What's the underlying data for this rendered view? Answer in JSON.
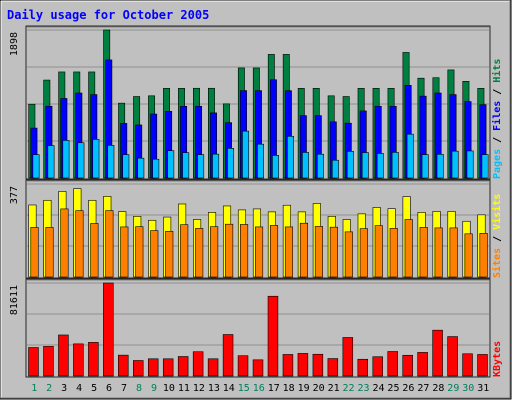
{
  "title": "Daily usage for October 2005",
  "colors": {
    "background": "#c0c0c0",
    "title": "#0000ff",
    "hits": "#008040",
    "files": "#0000ff",
    "pages": "#00c0ff",
    "visits": "#ffff00",
    "sites": "#ff8000",
    "kbytes": "#ff0000",
    "weekday": "#000000",
    "weekend": "#00805c"
  },
  "chart_data": [
    {
      "type": "bar",
      "name": "hits-files-pages",
      "ymax_label": "1898",
      "ymax": 1898,
      "side_label": [
        "Pages",
        "Files",
        "Hits"
      ],
      "categories": [
        "1",
        "2",
        "3",
        "4",
        "5",
        "6",
        "7",
        "8",
        "9",
        "10",
        "11",
        "12",
        "13",
        "14",
        "15",
        "16",
        "17",
        "18",
        "19",
        "20",
        "21",
        "22",
        "23",
        "24",
        "25",
        "26",
        "27",
        "28",
        "29",
        "30",
        "31"
      ],
      "weekend_days": [
        1,
        2,
        8,
        9,
        15,
        16,
        22,
        23,
        29,
        30
      ],
      "series": [
        {
          "name": "Hits",
          "values": [
            946,
            1256,
            1360,
            1360,
            1360,
            1898,
            960,
            1045,
            1054,
            1150,
            1150,
            1151,
            1151,
            951,
            1411,
            1411,
            1585,
            1585,
            1150,
            1150,
            1054,
            1045,
            1150,
            1150,
            1150,
            1610,
            1280,
            1286,
            1386,
            1240,
            1150
          ]
        },
        {
          "name": "Files",
          "values": [
            640,
            920,
            1020,
            1090,
            1070,
            1514,
            700,
            680,
            820,
            855,
            920,
            920,
            835,
            710,
            1121,
            1121,
            1260,
            1120,
            800,
            800,
            720,
            703,
            860,
            920,
            920,
            1188,
            1050,
            1090,
            1070,
            980,
            940
          ]
        },
        {
          "name": "Pages",
          "values": [
            300,
            416,
            482,
            452,
            495,
            419,
            300,
            254,
            241,
            350,
            325,
            300,
            306,
            380,
            601,
            434,
            290,
            535,
            328,
            305,
            228,
            342,
            326,
            315,
            329,
            562,
            300,
            304,
            344,
            347,
            300
          ]
        }
      ]
    },
    {
      "type": "bar",
      "name": "visits-sites",
      "ymax_label": "377",
      "ymax": 377,
      "side_label": [
        "Sites",
        "Visits"
      ],
      "categories": [
        "1",
        "2",
        "3",
        "4",
        "5",
        "6",
        "7",
        "8",
        "9",
        "10",
        "11",
        "12",
        "13",
        "14",
        "15",
        "16",
        "17",
        "18",
        "19",
        "20",
        "21",
        "22",
        "23",
        "24",
        "25",
        "26",
        "27",
        "28",
        "29",
        "30",
        "31"
      ],
      "series": [
        {
          "name": "Visits",
          "values": [
            292,
            311,
            347,
            358,
            311,
            327,
            265,
            246,
            230,
            243,
            296,
            233,
            262,
            288,
            272,
            276,
            264,
            291,
            264,
            298,
            246,
            233,
            256,
            282,
            277,
            326,
            262,
            266,
            266,
            226,
            252
          ]
        },
        {
          "name": "Sites",
          "values": [
            201,
            201,
            276,
            269,
            217,
            269,
            203,
            204,
            188,
            185,
            212,
            197,
            204,
            214,
            213,
            203,
            209,
            203,
            218,
            205,
            202,
            183,
            196,
            208,
            197,
            233,
            201,
            199,
            199,
            175,
            177
          ]
        }
      ]
    },
    {
      "type": "bar",
      "name": "kbytes",
      "ymax_label": "81611",
      "ymax": 81611,
      "side_label": [
        "KBytes"
      ],
      "categories": [
        "1",
        "2",
        "3",
        "4",
        "5",
        "6",
        "7",
        "8",
        "9",
        "10",
        "11",
        "12",
        "13",
        "14",
        "15",
        "16",
        "17",
        "18",
        "19",
        "20",
        "21",
        "22",
        "23",
        "24",
        "25",
        "26",
        "27",
        "28",
        "29",
        "30",
        "31"
      ],
      "series": [
        {
          "name": "KBytes",
          "values": [
            25000,
            26000,
            36000,
            28200,
            29500,
            81611,
            18300,
            13600,
            15100,
            15100,
            17100,
            21300,
            15100,
            36400,
            17800,
            14200,
            70000,
            18900,
            19800,
            19100,
            15300,
            33800,
            14700,
            16900,
            21500,
            18200,
            20700,
            40200,
            34600,
            19500,
            18900
          ]
        }
      ]
    }
  ]
}
